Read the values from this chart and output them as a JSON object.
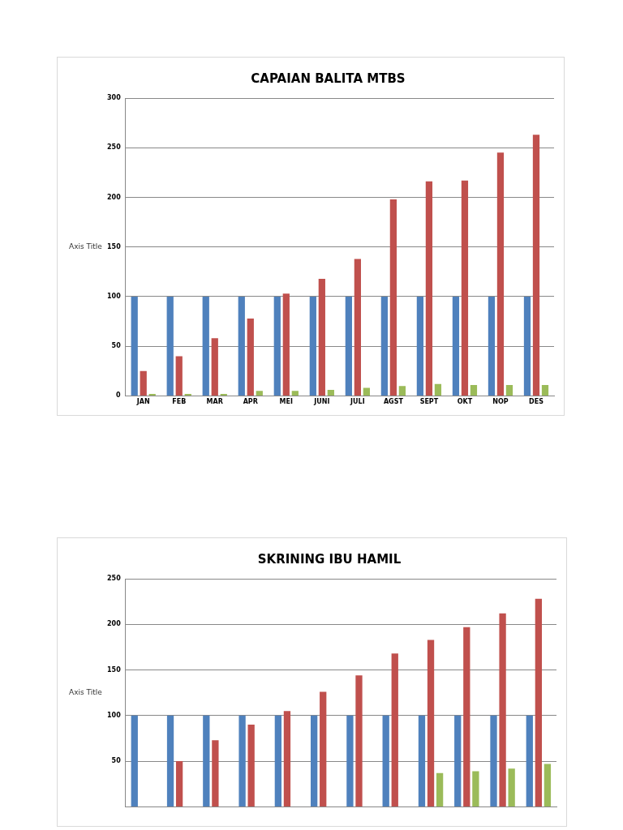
{
  "chart_data": [
    {
      "type": "bar",
      "title": "CAPAIAN BALITA MTBS",
      "ylabel": "Axis Title",
      "categories": [
        "JAN",
        "FEB",
        "MAR",
        "APR",
        "MEI",
        "JUNI",
        "JULI",
        "AGST",
        "SEPT",
        "OKT",
        "NOP",
        "DES"
      ],
      "series": [
        {
          "color": "#4f81bd",
          "values": [
            100,
            100,
            100,
            100,
            100,
            100,
            100,
            100,
            100,
            100,
            100,
            100
          ]
        },
        {
          "color": "#c0504d",
          "values": [
            25,
            40,
            58,
            78,
            103,
            118,
            138,
            198,
            216,
            217,
            245,
            263
          ]
        },
        {
          "color": "#9bbb59",
          "values": [
            2,
            2,
            2,
            5,
            5,
            6,
            8,
            10,
            12,
            11,
            11,
            11
          ]
        }
      ],
      "ylim": [
        0,
        300
      ],
      "yticks": [
        0,
        50,
        100,
        150,
        200,
        250,
        300
      ],
      "grid": "y",
      "legend": false
    },
    {
      "type": "bar",
      "title": "SKRINING IBU HAMIL",
      "ylabel": "Axis Title",
      "categories": [
        null,
        null,
        null,
        null,
        null,
        null,
        null,
        null,
        null,
        null,
        null,
        null
      ],
      "series": [
        {
          "color": "#4f81bd",
          "values": [
            100,
            100,
            100,
            100,
            100,
            100,
            100,
            100,
            100,
            100,
            100,
            100
          ]
        },
        {
          "color": "#c0504d",
          "values": [
            null,
            50,
            73,
            90,
            105,
            126,
            144,
            168,
            183,
            197,
            212,
            228
          ]
        },
        {
          "color": "#9bbb59",
          "values": [
            null,
            null,
            null,
            null,
            null,
            null,
            null,
            null,
            37,
            39,
            42,
            47
          ]
        }
      ],
      "ylim": [
        0,
        250
      ],
      "yticks": [
        {
          "value": 0,
          "label": null
        },
        50,
        100,
        150,
        200,
        250
      ],
      "grid": "y",
      "legend": false
    }
  ]
}
